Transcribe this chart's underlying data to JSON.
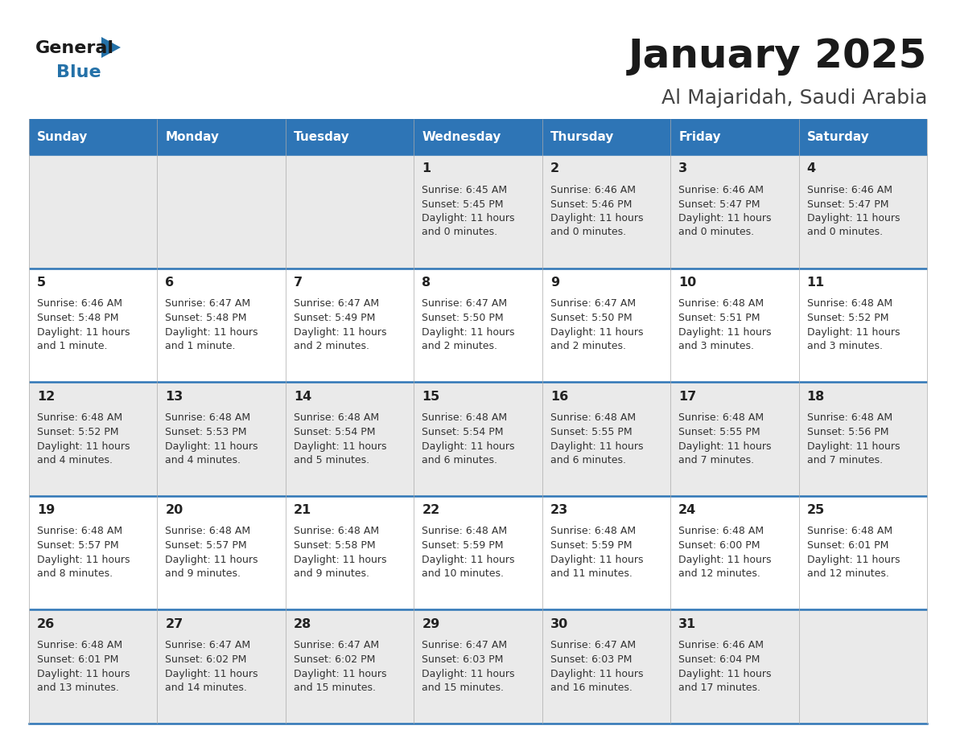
{
  "title": "January 2025",
  "subtitle": "Al Majaridah, Saudi Arabia",
  "days_of_week": [
    "Sunday",
    "Monday",
    "Tuesday",
    "Wednesday",
    "Thursday",
    "Friday",
    "Saturday"
  ],
  "header_bg": "#2E75B6",
  "header_text_color": "#FFFFFF",
  "row_bg_light": "#EAEAEA",
  "row_bg_white": "#FFFFFF",
  "row_separator_color": "#2E75B6",
  "day_number_color": "#222222",
  "cell_text_color": "#333333",
  "title_color": "#1a1a1a",
  "subtitle_color": "#444444",
  "logo_black": "#1a1a1a",
  "logo_blue": "#2471A8",
  "calendar_data": [
    [
      null,
      null,
      null,
      {
        "day": 1,
        "sunrise": "6:45 AM",
        "sunset": "5:45 PM",
        "dl1": "Daylight: 11 hours",
        "dl2": "and 0 minutes."
      },
      {
        "day": 2,
        "sunrise": "6:46 AM",
        "sunset": "5:46 PM",
        "dl1": "Daylight: 11 hours",
        "dl2": "and 0 minutes."
      },
      {
        "day": 3,
        "sunrise": "6:46 AM",
        "sunset": "5:47 PM",
        "dl1": "Daylight: 11 hours",
        "dl2": "and 0 minutes."
      },
      {
        "day": 4,
        "sunrise": "6:46 AM",
        "sunset": "5:47 PM",
        "dl1": "Daylight: 11 hours",
        "dl2": "and 0 minutes."
      }
    ],
    [
      {
        "day": 5,
        "sunrise": "6:46 AM",
        "sunset": "5:48 PM",
        "dl1": "Daylight: 11 hours",
        "dl2": "and 1 minute."
      },
      {
        "day": 6,
        "sunrise": "6:47 AM",
        "sunset": "5:48 PM",
        "dl1": "Daylight: 11 hours",
        "dl2": "and 1 minute."
      },
      {
        "day": 7,
        "sunrise": "6:47 AM",
        "sunset": "5:49 PM",
        "dl1": "Daylight: 11 hours",
        "dl2": "and 2 minutes."
      },
      {
        "day": 8,
        "sunrise": "6:47 AM",
        "sunset": "5:50 PM",
        "dl1": "Daylight: 11 hours",
        "dl2": "and 2 minutes."
      },
      {
        "day": 9,
        "sunrise": "6:47 AM",
        "sunset": "5:50 PM",
        "dl1": "Daylight: 11 hours",
        "dl2": "and 2 minutes."
      },
      {
        "day": 10,
        "sunrise": "6:48 AM",
        "sunset": "5:51 PM",
        "dl1": "Daylight: 11 hours",
        "dl2": "and 3 minutes."
      },
      {
        "day": 11,
        "sunrise": "6:48 AM",
        "sunset": "5:52 PM",
        "dl1": "Daylight: 11 hours",
        "dl2": "and 3 minutes."
      }
    ],
    [
      {
        "day": 12,
        "sunrise": "6:48 AM",
        "sunset": "5:52 PM",
        "dl1": "Daylight: 11 hours",
        "dl2": "and 4 minutes."
      },
      {
        "day": 13,
        "sunrise": "6:48 AM",
        "sunset": "5:53 PM",
        "dl1": "Daylight: 11 hours",
        "dl2": "and 4 minutes."
      },
      {
        "day": 14,
        "sunrise": "6:48 AM",
        "sunset": "5:54 PM",
        "dl1": "Daylight: 11 hours",
        "dl2": "and 5 minutes."
      },
      {
        "day": 15,
        "sunrise": "6:48 AM",
        "sunset": "5:54 PM",
        "dl1": "Daylight: 11 hours",
        "dl2": "and 6 minutes."
      },
      {
        "day": 16,
        "sunrise": "6:48 AM",
        "sunset": "5:55 PM",
        "dl1": "Daylight: 11 hours",
        "dl2": "and 6 minutes."
      },
      {
        "day": 17,
        "sunrise": "6:48 AM",
        "sunset": "5:55 PM",
        "dl1": "Daylight: 11 hours",
        "dl2": "and 7 minutes."
      },
      {
        "day": 18,
        "sunrise": "6:48 AM",
        "sunset": "5:56 PM",
        "dl1": "Daylight: 11 hours",
        "dl2": "and 7 minutes."
      }
    ],
    [
      {
        "day": 19,
        "sunrise": "6:48 AM",
        "sunset": "5:57 PM",
        "dl1": "Daylight: 11 hours",
        "dl2": "and 8 minutes."
      },
      {
        "day": 20,
        "sunrise": "6:48 AM",
        "sunset": "5:57 PM",
        "dl1": "Daylight: 11 hours",
        "dl2": "and 9 minutes."
      },
      {
        "day": 21,
        "sunrise": "6:48 AM",
        "sunset": "5:58 PM",
        "dl1": "Daylight: 11 hours",
        "dl2": "and 9 minutes."
      },
      {
        "day": 22,
        "sunrise": "6:48 AM",
        "sunset": "5:59 PM",
        "dl1": "Daylight: 11 hours",
        "dl2": "and 10 minutes."
      },
      {
        "day": 23,
        "sunrise": "6:48 AM",
        "sunset": "5:59 PM",
        "dl1": "Daylight: 11 hours",
        "dl2": "and 11 minutes."
      },
      {
        "day": 24,
        "sunrise": "6:48 AM",
        "sunset": "6:00 PM",
        "dl1": "Daylight: 11 hours",
        "dl2": "and 12 minutes."
      },
      {
        "day": 25,
        "sunrise": "6:48 AM",
        "sunset": "6:01 PM",
        "dl1": "Daylight: 11 hours",
        "dl2": "and 12 minutes."
      }
    ],
    [
      {
        "day": 26,
        "sunrise": "6:48 AM",
        "sunset": "6:01 PM",
        "dl1": "Daylight: 11 hours",
        "dl2": "and 13 minutes."
      },
      {
        "day": 27,
        "sunrise": "6:47 AM",
        "sunset": "6:02 PM",
        "dl1": "Daylight: 11 hours",
        "dl2": "and 14 minutes."
      },
      {
        "day": 28,
        "sunrise": "6:47 AM",
        "sunset": "6:02 PM",
        "dl1": "Daylight: 11 hours",
        "dl2": "and 15 minutes."
      },
      {
        "day": 29,
        "sunrise": "6:47 AM",
        "sunset": "6:03 PM",
        "dl1": "Daylight: 11 hours",
        "dl2": "and 15 minutes."
      },
      {
        "day": 30,
        "sunrise": "6:47 AM",
        "sunset": "6:03 PM",
        "dl1": "Daylight: 11 hours",
        "dl2": "and 16 minutes."
      },
      {
        "day": 31,
        "sunrise": "6:46 AM",
        "sunset": "6:04 PM",
        "dl1": "Daylight: 11 hours",
        "dl2": "and 17 minutes."
      },
      null
    ]
  ]
}
